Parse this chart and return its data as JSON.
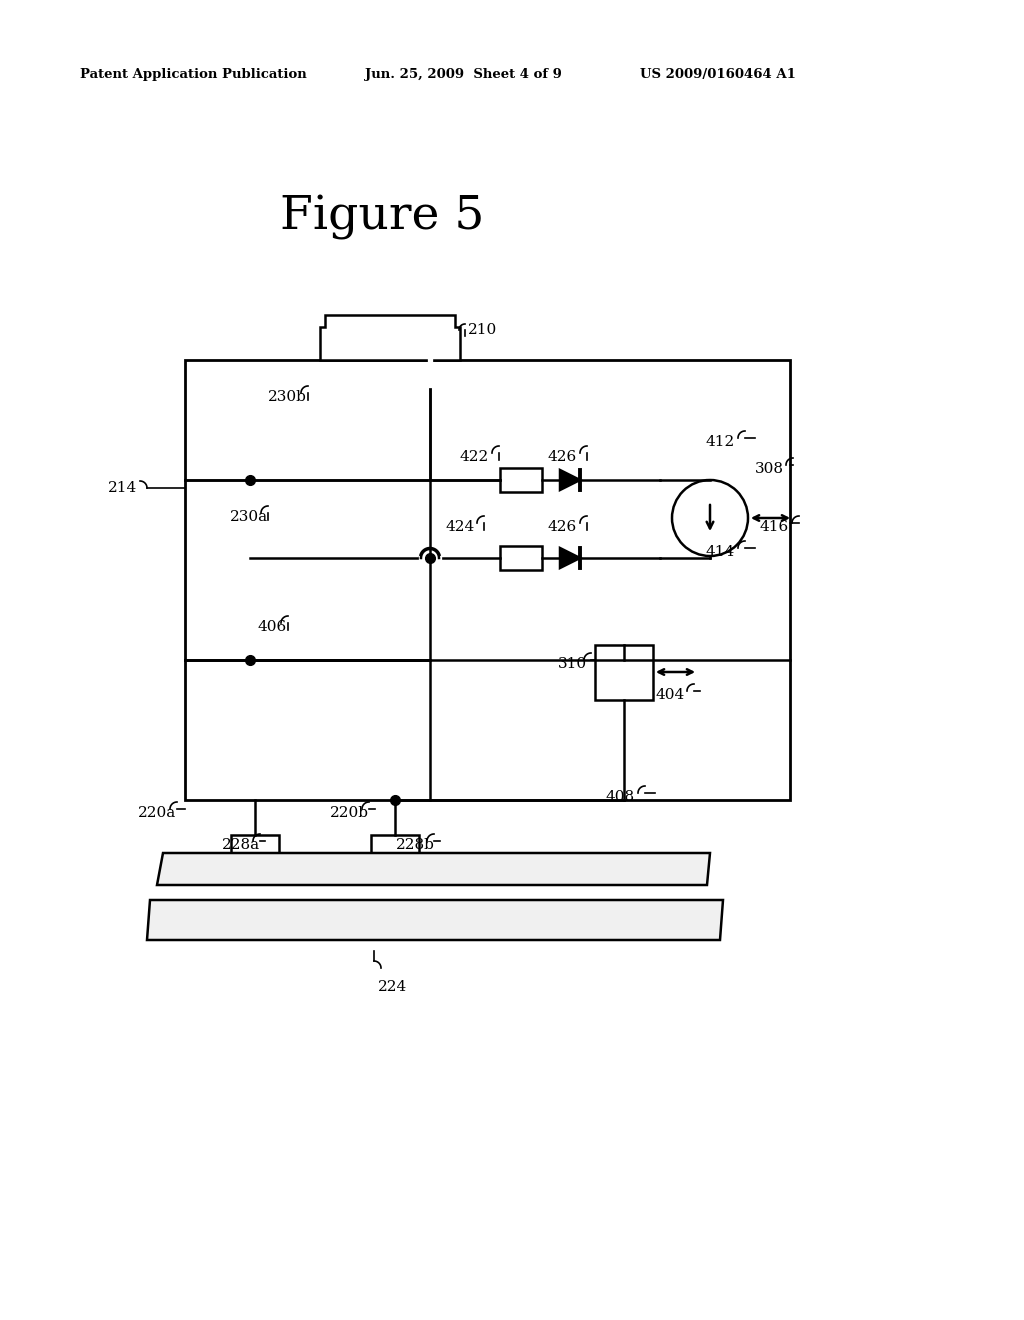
{
  "background_color": "#ffffff",
  "header_left": "Patent Application Publication",
  "header_center": "Jun. 25, 2009  Sheet 4 of 9",
  "header_right": "US 2009/0160464 A1",
  "figure_title": "Figure 5",
  "lw": 1.8
}
